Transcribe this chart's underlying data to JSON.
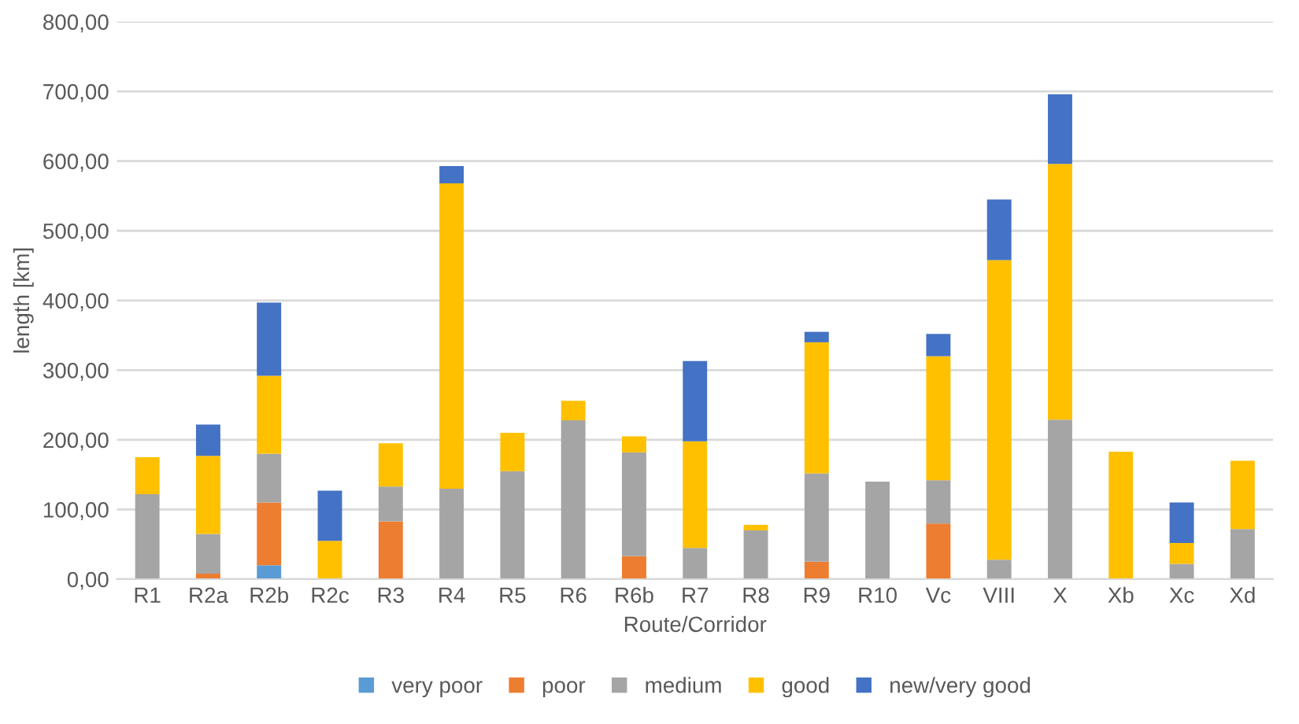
{
  "chart_data": {
    "type": "bar",
    "stacked": true,
    "xlabel": "Route/Corridor",
    "ylabel": "length [km]",
    "categories": [
      "R1",
      "R2a",
      "R2b",
      "R2c",
      "R3",
      "R4",
      "R5",
      "R6",
      "R6b",
      "R7",
      "R8",
      "R9",
      "R10",
      "Vc",
      "VIII",
      "X",
      "Xb",
      "Xc",
      "Xd"
    ],
    "series": [
      {
        "name": "very poor",
        "color": "#5b9bd5",
        "values": [
          0,
          0,
          20,
          0,
          0,
          0,
          0,
          0,
          0,
          0,
          0,
          0,
          0,
          0,
          0,
          0,
          0,
          0,
          0
        ]
      },
      {
        "name": "poor",
        "color": "#ed7d31",
        "values": [
          0,
          8,
          90,
          0,
          83,
          0,
          0,
          0,
          33,
          0,
          0,
          25,
          0,
          80,
          0,
          0,
          0,
          0,
          0
        ]
      },
      {
        "name": "medium",
        "color": "#a5a5a5",
        "values": [
          122,
          57,
          70,
          0,
          50,
          130,
          155,
          228,
          149,
          45,
          70,
          127,
          140,
          62,
          28,
          229,
          0,
          22,
          72
        ]
      },
      {
        "name": "good",
        "color": "#ffc000",
        "values": [
          53,
          112,
          112,
          55,
          62,
          438,
          55,
          28,
          23,
          153,
          8,
          188,
          0,
          178,
          430,
          367,
          183,
          30,
          98
        ]
      },
      {
        "name": "new/very good",
        "color": "#4472c4",
        "values": [
          0,
          45,
          105,
          72,
          0,
          25,
          0,
          0,
          0,
          115,
          0,
          15,
          0,
          32,
          87,
          100,
          0,
          58,
          0
        ]
      }
    ],
    "ylim": [
      0,
      800
    ],
    "yticks": [
      {
        "value": 0,
        "label": "0,00"
      },
      {
        "value": 100,
        "label": "100,00"
      },
      {
        "value": 200,
        "label": "200,00"
      },
      {
        "value": 300,
        "label": "300,00"
      },
      {
        "value": 400,
        "label": "400,00"
      },
      {
        "value": 500,
        "label": "500,00"
      },
      {
        "value": 600,
        "label": "600,00"
      },
      {
        "value": 700,
        "label": "700,00"
      },
      {
        "value": 800,
        "label": "800,00"
      }
    ],
    "grid": "y",
    "legend": "bottom"
  }
}
